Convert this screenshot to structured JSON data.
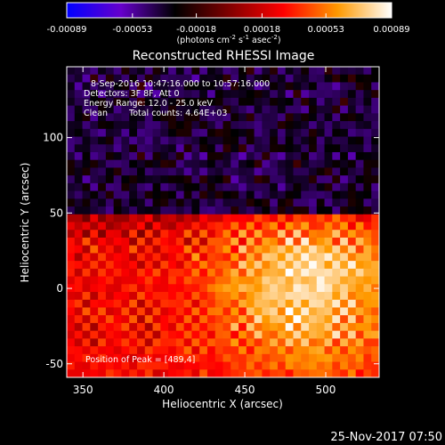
{
  "chart_data": {
    "type": "heatmap",
    "title": "Reconstructed RHESSI Image",
    "colorbar": {
      "tick_labels": [
        "-0.00089",
        "-0.00053",
        "-0.00018",
        "0.00018",
        "0.00053",
        "0.00089"
      ],
      "ticks": [
        -0.00089,
        -0.00053,
        -0.00018,
        0.00018,
        0.00053,
        0.00089
      ],
      "range": [
        -0.00089,
        0.00089
      ],
      "units_prefix": "(photons cm",
      "units_sup1": "-2",
      "units_mid": " s",
      "units_sup2": "-1",
      "units_mid2": " asec",
      "units_sup3": "-2",
      "units_suffix": ")",
      "colormap": [
        "#0000ff",
        "#6600cc",
        "#000000",
        "#800000",
        "#ff0000",
        "#ff9900",
        "#ffffff"
      ]
    },
    "xlabel": "Heliocentric X (arcsec)",
    "ylabel": "Heliocentric Y (arcsec)",
    "xlim": [
      340,
      533
    ],
    "ylim": [
      -59,
      147
    ],
    "xticks": [
      350,
      400,
      450,
      500
    ],
    "yticks": [
      -50,
      0,
      50,
      100
    ],
    "peak": [
      489,
      4
    ],
    "grid": false
  },
  "annotations": {
    "time": "8-Sep-2016 10:47:16.000 to 10:57:16.000",
    "detectors": "Detectors: 3F 8F, Att 0",
    "energy": "Energy Range: 12.0 - 25.0 keV",
    "clean": "Clean",
    "counts": "Total counts: 4.64E+03",
    "peak_label": "Position of Peak = [489,4]"
  },
  "footer": {
    "timestamp": "25-Nov-2017 07:50"
  }
}
